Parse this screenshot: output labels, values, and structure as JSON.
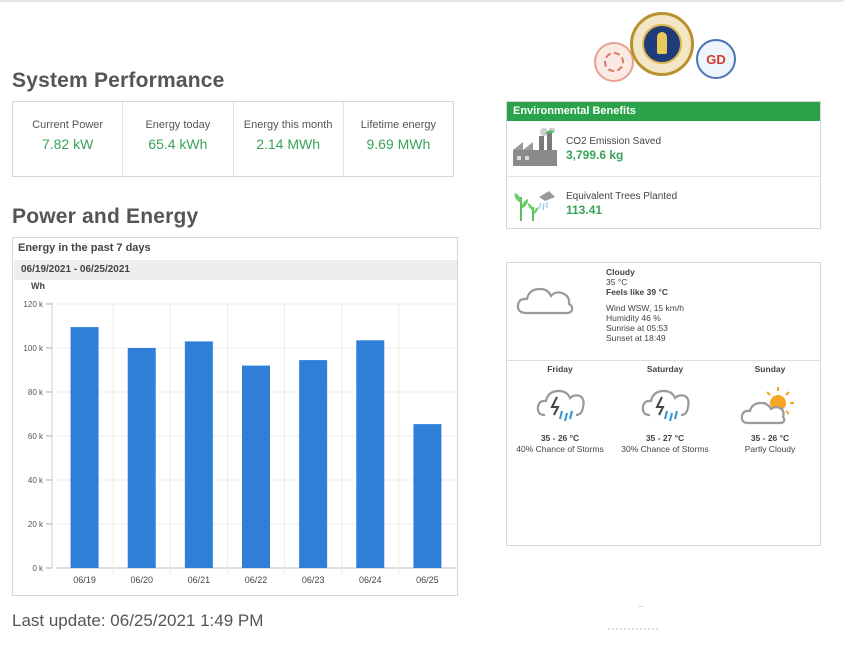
{
  "system_performance": {
    "title": "System Performance",
    "metrics": [
      {
        "label": "Current Power",
        "value": "7.82 kW"
      },
      {
        "label": "Energy today",
        "value": "65.4 kWh"
      },
      {
        "label": "Energy this month",
        "value": "2.14 MWh"
      },
      {
        "label": "Lifetime energy",
        "value": "9.69 MWh"
      }
    ]
  },
  "power_energy": {
    "title": "Power and Energy",
    "panel_title": "Energy in the past 7 days",
    "date_range": "06/19/2021 - 06/25/2021"
  },
  "chart_data": {
    "type": "bar",
    "title": "Energy in the past 7 days",
    "xlabel": "",
    "ylabel": "Wh",
    "categories": [
      "06/19",
      "06/20",
      "06/21",
      "06/22",
      "06/23",
      "06/24",
      "06/25"
    ],
    "values": [
      109500,
      100000,
      103000,
      92000,
      94500,
      103500,
      65400
    ],
    "ylim": [
      0,
      120000
    ],
    "yticks": [
      0,
      20000,
      40000,
      60000,
      80000,
      100000,
      120000
    ],
    "ytick_labels": [
      "0 k",
      "20 k",
      "40 k",
      "60 k",
      "80 k",
      "100 k",
      "120 k"
    ],
    "bar_color": "#2f7fd8",
    "grid": true
  },
  "environmental_benefits": {
    "title": "Environmental Benefits",
    "co2_label": "CO2 Emission Saved",
    "co2_value": "3,799.6 kg",
    "trees_label": "Equivalent Trees Planted",
    "trees_value": "113.41",
    "accent_color": "#2aa34a"
  },
  "weather": {
    "current": {
      "condition": "Cloudy",
      "temp": "35 °C",
      "feels_like": "Feels like 39 °C",
      "wind": "Wind WSW, 15 km/h",
      "humidity": "Humidity 46 %",
      "sunrise": "Sunrise at 05:53",
      "sunset": "Sunset at 18:49",
      "icon": "cloud-icon"
    },
    "forecast": [
      {
        "day": "Friday",
        "temp": "35 - 26 °C",
        "condition": "40% Chance of Storms",
        "icon": "storm-icon"
      },
      {
        "day": "Saturday",
        "temp": "35 - 27 °C",
        "condition": "30% Chance of Storms",
        "icon": "storm-icon"
      },
      {
        "day": "Sunday",
        "temp": "35 - 26 °C",
        "condition": "Partly Cloudy",
        "icon": "partly-cloudy-icon"
      }
    ]
  },
  "footer": {
    "last_update": "Last update: 06/25/2021 1:49 PM"
  },
  "logos": {
    "right_logo_text": "GD"
  }
}
